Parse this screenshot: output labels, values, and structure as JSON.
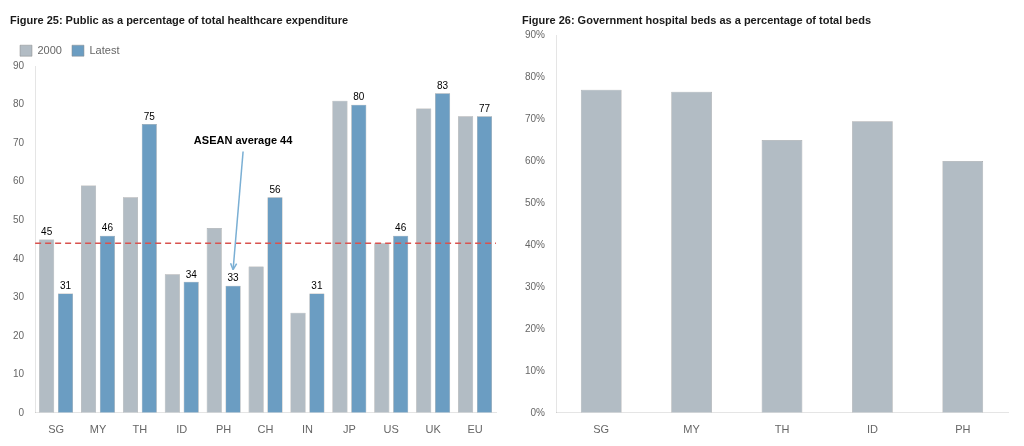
{
  "chart_data": [
    {
      "type": "bar",
      "title": "Figure 25: Public as a percentage of total healthcare expenditure",
      "categories": [
        "SG",
        "MY",
        "TH",
        "ID",
        "PH",
        "CH",
        "IN",
        "JP",
        "US",
        "UK",
        "EU"
      ],
      "series": [
        {
          "name": "2000",
          "color": "#b2bcc4",
          "values": [
            45,
            59,
            56,
            36,
            48,
            38,
            26,
            81,
            44,
            79,
            77
          ],
          "value_labels": [
            "45",
            null,
            null,
            null,
            null,
            null,
            null,
            null,
            null,
            null,
            null
          ]
        },
        {
          "name": "Latest",
          "color": "#6b9dc2",
          "values": [
            31,
            46,
            75,
            34,
            33,
            56,
            31,
            80,
            46,
            83,
            77
          ]
        }
      ],
      "data_labels": true,
      "ylim": [
        0,
        90
      ],
      "yticks": [
        0,
        10,
        20,
        30,
        40,
        50,
        60,
        70,
        80,
        90
      ],
      "grid": false,
      "legend": "upper left",
      "annotations": [
        {
          "type": "hline",
          "y": 44,
          "label": "ASEAN average 44",
          "color": "#d9534f",
          "line_style": "dashed",
          "category": "PH"
        }
      ]
    },
    {
      "type": "bar",
      "title": "Figure 26: Government hospital beds as a percentage of total beds",
      "categories": [
        "SG",
        "MY",
        "TH",
        "ID",
        "PH"
      ],
      "values": [
        0.77,
        0.765,
        0.65,
        0.695,
        0.6
      ],
      "color": "#b2bcc4",
      "ylim": [
        0,
        0.9
      ],
      "yticks": [
        {
          "value": 0.0,
          "label": "0%"
        },
        {
          "value": 0.1,
          "label": "10%"
        },
        {
          "value": 0.2,
          "label": "20%"
        },
        {
          "value": 0.3,
          "label": "30%"
        },
        {
          "value": 0.4,
          "label": "40%"
        },
        {
          "value": 0.5,
          "label": "50%"
        },
        {
          "value": 0.6,
          "label": "60%"
        },
        {
          "value": 0.7,
          "label": "70%"
        },
        {
          "value": 0.8,
          "label": "80%"
        },
        {
          "value": 0.9,
          "label": "90%"
        }
      ],
      "grid": false
    }
  ]
}
